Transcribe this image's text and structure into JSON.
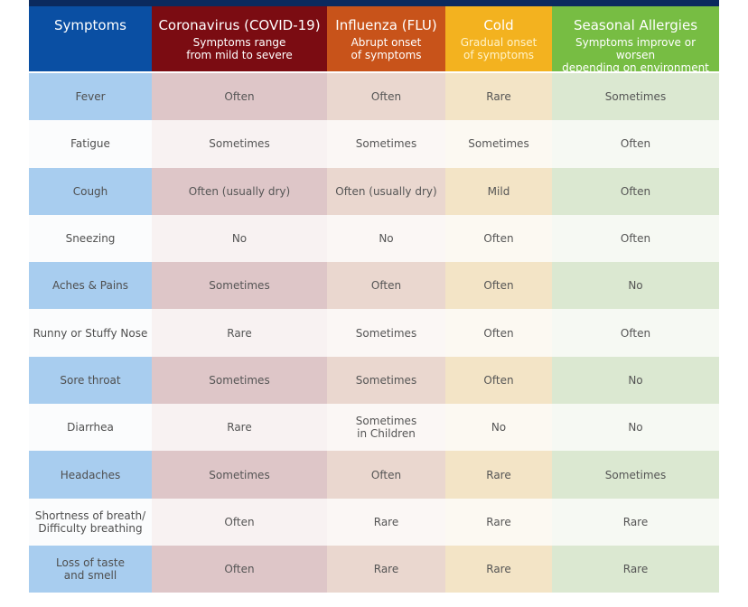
{
  "header": {
    "columns": [
      {
        "title": "Symptoms",
        "subtitle_line1": "",
        "subtitle_line2": ""
      },
      {
        "title": "Coronavirus (COVID-19)",
        "subtitle_line1": "Symptoms range",
        "subtitle_line2": "from mild to severe"
      },
      {
        "title": "Influenza (FLU)",
        "subtitle_line1": "Abrupt onset",
        "subtitle_line2": "of symptoms"
      },
      {
        "title": "Cold",
        "subtitle_line1": "Gradual onset",
        "subtitle_line2": "of symptoms"
      },
      {
        "title": "Seasonal Allergies",
        "subtitle_line1": "Symptoms improve or worsen",
        "subtitle_line2": "depending on environment"
      }
    ]
  },
  "rows": [
    {
      "symptom": [
        "Fever",
        ""
      ],
      "covid": [
        "Often",
        ""
      ],
      "flu": [
        "Often",
        ""
      ],
      "cold": [
        "Rare",
        ""
      ],
      "allergies": [
        "Sometimes",
        ""
      ]
    },
    {
      "symptom": [
        "Fatigue",
        ""
      ],
      "covid": [
        "Sometimes",
        ""
      ],
      "flu": [
        "Sometimes",
        ""
      ],
      "cold": [
        "Sometimes",
        ""
      ],
      "allergies": [
        "Often",
        ""
      ]
    },
    {
      "symptom": [
        "Cough",
        ""
      ],
      "covid": [
        "Often (usually dry)",
        ""
      ],
      "flu": [
        "Often (usually dry)",
        ""
      ],
      "cold": [
        "Mild",
        ""
      ],
      "allergies": [
        "Often",
        ""
      ]
    },
    {
      "symptom": [
        "Sneezing",
        ""
      ],
      "covid": [
        "No",
        ""
      ],
      "flu": [
        "No",
        ""
      ],
      "cold": [
        "Often",
        ""
      ],
      "allergies": [
        "Often",
        ""
      ]
    },
    {
      "symptom": [
        "Aches & Pains",
        ""
      ],
      "covid": [
        "Sometimes",
        ""
      ],
      "flu": [
        "Often",
        ""
      ],
      "cold": [
        "Often",
        ""
      ],
      "allergies": [
        "No",
        ""
      ]
    },
    {
      "symptom": [
        "Runny or Stuffy Nose",
        ""
      ],
      "covid": [
        "Rare",
        ""
      ],
      "flu": [
        "Sometimes",
        ""
      ],
      "cold": [
        "Often",
        ""
      ],
      "allergies": [
        "Often",
        ""
      ]
    },
    {
      "symptom": [
        "Sore throat",
        ""
      ],
      "covid": [
        "Sometimes",
        ""
      ],
      "flu": [
        "Sometimes",
        ""
      ],
      "cold": [
        "Often",
        ""
      ],
      "allergies": [
        "No",
        ""
      ]
    },
    {
      "symptom": [
        "Diarrhea",
        ""
      ],
      "covid": [
        "Rare",
        ""
      ],
      "flu": [
        "Sometimes",
        "in Children"
      ],
      "cold": [
        "No",
        ""
      ],
      "allergies": [
        "No",
        ""
      ]
    },
    {
      "symptom": [
        "Headaches",
        ""
      ],
      "covid": [
        "Sometimes",
        ""
      ],
      "flu": [
        "Often",
        ""
      ],
      "cold": [
        "Rare",
        ""
      ],
      "allergies": [
        "Sometimes",
        ""
      ]
    },
    {
      "symptom": [
        "Shortness of breath/",
        "Difficulty breathing"
      ],
      "covid": [
        "Often",
        ""
      ],
      "flu": [
        "Rare",
        ""
      ],
      "cold": [
        "Rare",
        ""
      ],
      "allergies": [
        "Rare",
        ""
      ]
    },
    {
      "symptom": [
        "Loss of taste",
        "and smell"
      ],
      "covid": [
        "Often",
        ""
      ],
      "flu": [
        "Rare",
        ""
      ],
      "cold": [
        "Rare",
        ""
      ],
      "allergies": [
        "Rare",
        ""
      ]
    }
  ]
}
